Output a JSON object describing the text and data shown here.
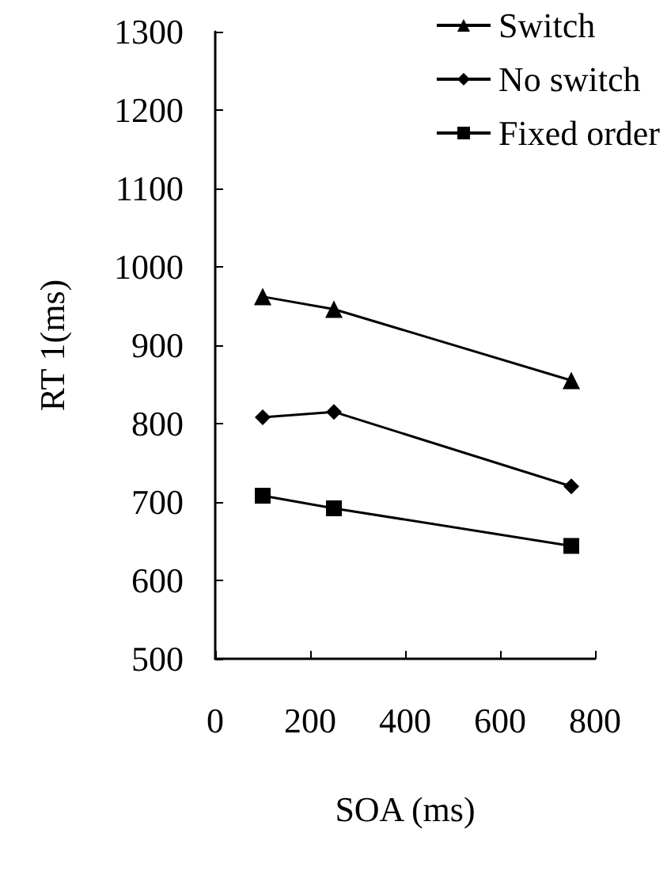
{
  "chart_data": {
    "type": "line",
    "xlabel": "SOA (ms)",
    "ylabel": "RT 1(ms)",
    "x": [
      100,
      250,
      750
    ],
    "series": [
      {
        "name": "Switch",
        "color": "#000000",
        "marker": "triangle",
        "values": [
          962,
          946,
          855
        ]
      },
      {
        "name": "No switch",
        "color": "#000000",
        "marker": "diamond",
        "values": [
          808,
          815,
          720
        ]
      },
      {
        "name": "Fixed order",
        "color": "#000000",
        "marker": "square",
        "values": [
          708,
          692,
          644
        ]
      }
    ],
    "xlim": [
      0,
      800
    ],
    "xticks": [
      0,
      200,
      400,
      600,
      800
    ],
    "ylim": [
      500,
      1300
    ],
    "yticks": [
      500,
      600,
      700,
      800,
      900,
      1000,
      1100,
      1200,
      1300
    ],
    "grid": false,
    "legend": "top right",
    "line_style": "solid"
  }
}
